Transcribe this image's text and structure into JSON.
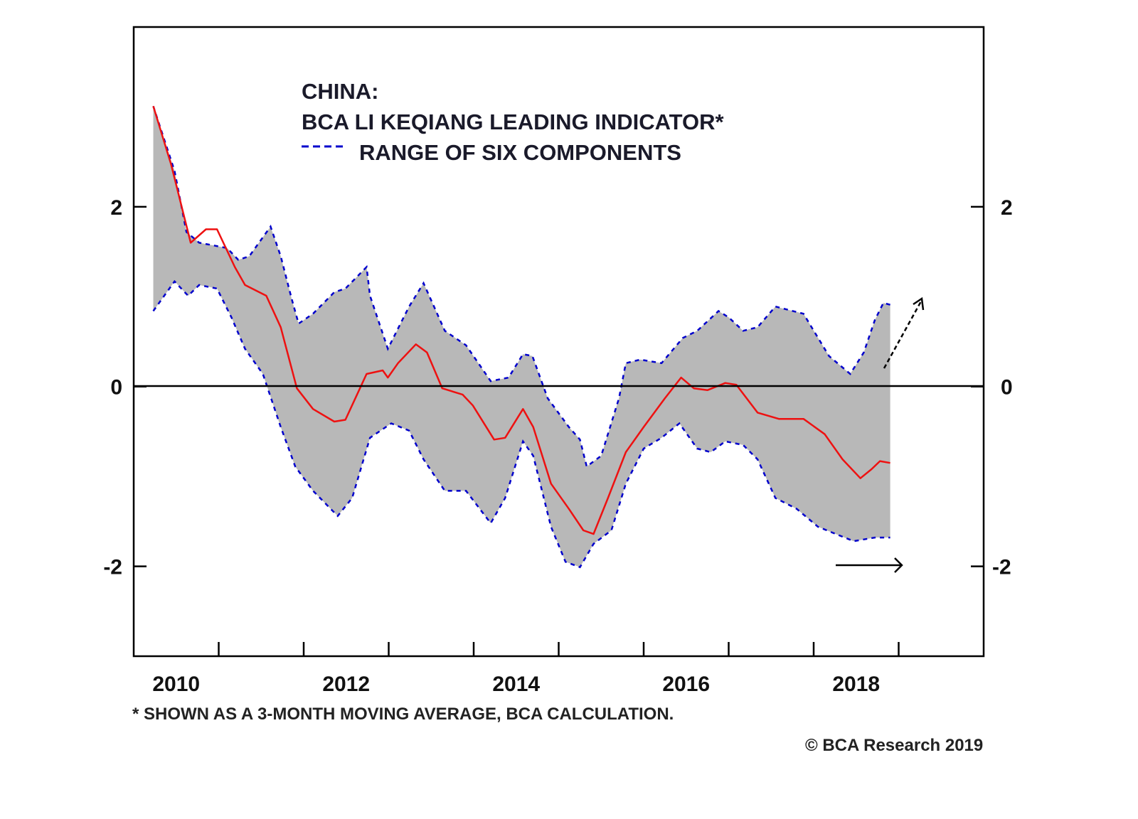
{
  "chart_data": {
    "type": "area",
    "title_lines": [
      "CHINA:",
      "BCA LI KEQIANG LEADING INDICATOR*"
    ],
    "legend": [
      {
        "label": "RANGE OF SIX COMPONENTS",
        "style": "dashed",
        "color": "#0000cc"
      }
    ],
    "xlim": [
      2010,
      2020
    ],
    "ylim": [
      -3,
      4
    ],
    "x_ticks": [
      2011,
      2012,
      2013,
      2014,
      2015,
      2016,
      2017,
      2018,
      2019
    ],
    "x_tick_labels": [
      "2010",
      "2012",
      "2014",
      "2016",
      "2018"
    ],
    "y_ticks": [
      -2,
      0,
      2
    ],
    "y_tick_labels": [
      "-2",
      "0",
      "2"
    ],
    "grid": false,
    "zero_line": true,
    "colors": {
      "indicator": "#ee1111",
      "range_fill": "#b8b8b8",
      "range_edge": "#0000cc"
    },
    "series": [
      {
        "name": "BCA LI KEQIANG LEADING INDICATOR*",
        "x": [
          2010.23,
          2010.44,
          2010.67,
          2010.85,
          2010.98,
          2011.19,
          2011.31,
          2011.56,
          2011.73,
          2011.92,
          2012.11,
          2012.36,
          2012.49,
          2012.74,
          2012.93,
          2012.99,
          2013.11,
          2013.32,
          2013.45,
          2013.63,
          2013.87,
          2013.99,
          2014.24,
          2014.37,
          2014.58,
          2014.7,
          2014.91,
          2015.12,
          2015.29,
          2015.41,
          2015.58,
          2015.79,
          2016.0,
          2016.25,
          2016.44,
          2016.59,
          2016.75,
          2016.96,
          2017.09,
          2017.34,
          2017.59,
          2017.88,
          2018.13,
          2018.34,
          2018.55,
          2018.68,
          2018.78,
          2018.9
        ],
        "y": [
          3.12,
          2.47,
          1.6,
          1.75,
          1.75,
          1.33,
          1.13,
          1.01,
          0.66,
          -0.02,
          -0.25,
          -0.39,
          -0.37,
          0.14,
          0.18,
          0.1,
          0.26,
          0.47,
          0.38,
          -0.02,
          -0.09,
          -0.21,
          -0.59,
          -0.57,
          -0.25,
          -0.45,
          -1.08,
          -1.36,
          -1.6,
          -1.64,
          -1.24,
          -0.73,
          -0.45,
          -0.13,
          0.1,
          -0.02,
          -0.04,
          0.04,
          0.02,
          -0.29,
          -0.36,
          -0.36,
          -0.53,
          -0.81,
          -1.02,
          -0.92,
          -0.83,
          -0.85
        ]
      },
      {
        "name": "RANGE OF SIX COMPONENTS (upper)",
        "x": [
          2010.23,
          2010.48,
          2010.62,
          2010.77,
          2010.94,
          2011.1,
          2011.23,
          2011.36,
          2011.61,
          2011.73,
          2011.86,
          2011.94,
          2012.11,
          2012.36,
          2012.49,
          2012.74,
          2012.78,
          2012.99,
          2013.24,
          2013.41,
          2013.66,
          2013.91,
          2014.2,
          2014.41,
          2014.58,
          2014.69,
          2014.87,
          2015.12,
          2015.25,
          2015.33,
          2015.5,
          2015.71,
          2015.79,
          2015.96,
          2016.21,
          2016.46,
          2016.63,
          2016.88,
          2017.0,
          2017.17,
          2017.34,
          2017.55,
          2017.88,
          2018.18,
          2018.43,
          2018.59,
          2018.72,
          2018.82,
          2018.9
        ],
        "y": [
          3.12,
          2.4,
          1.72,
          1.6,
          1.57,
          1.54,
          1.41,
          1.45,
          1.78,
          1.45,
          0.97,
          0.7,
          0.81,
          1.05,
          1.09,
          1.33,
          1.01,
          0.42,
          0.89,
          1.15,
          0.62,
          0.46,
          0.06,
          0.1,
          0.36,
          0.34,
          -0.13,
          -0.45,
          -0.59,
          -0.89,
          -0.77,
          -0.13,
          0.26,
          0.3,
          0.26,
          0.54,
          0.62,
          0.84,
          0.77,
          0.62,
          0.66,
          0.89,
          0.81,
          0.34,
          0.14,
          0.38,
          0.74,
          0.93,
          0.91
        ]
      },
      {
        "name": "RANGE OF SIX COMPONENTS (lower)",
        "x": [
          2010.23,
          2010.48,
          2010.64,
          2010.77,
          2010.98,
          2011.15,
          2011.31,
          2011.52,
          2011.73,
          2011.9,
          2012.11,
          2012.4,
          2012.57,
          2012.78,
          2013.03,
          2013.24,
          2013.41,
          2013.66,
          2013.91,
          2014.2,
          2014.37,
          2014.58,
          2014.7,
          2014.91,
          2015.08,
          2015.25,
          2015.41,
          2015.62,
          2015.79,
          2016.0,
          2016.21,
          2016.42,
          2016.63,
          2016.79,
          2016.96,
          2017.17,
          2017.34,
          2017.55,
          2017.8,
          2018.05,
          2018.26,
          2018.47,
          2018.72,
          2018.9
        ],
        "y": [
          0.84,
          1.17,
          1.01,
          1.13,
          1.09,
          0.77,
          0.42,
          0.14,
          -0.45,
          -0.89,
          -1.16,
          -1.44,
          -1.24,
          -0.57,
          -0.41,
          -0.49,
          -0.81,
          -1.16,
          -1.16,
          -1.52,
          -1.24,
          -0.61,
          -0.77,
          -1.56,
          -1.95,
          -2.01,
          -1.75,
          -1.6,
          -1.08,
          -0.69,
          -0.57,
          -0.41,
          -0.69,
          -0.73,
          -0.61,
          -0.65,
          -0.81,
          -1.24,
          -1.36,
          -1.56,
          -1.64,
          -1.72,
          -1.68,
          -1.68
        ]
      }
    ],
    "footnote": "* SHOWN AS A 3-MONTH MOVING AVERAGE, BCA CALCULATION.",
    "copyright": "© BCA Research 2019"
  }
}
